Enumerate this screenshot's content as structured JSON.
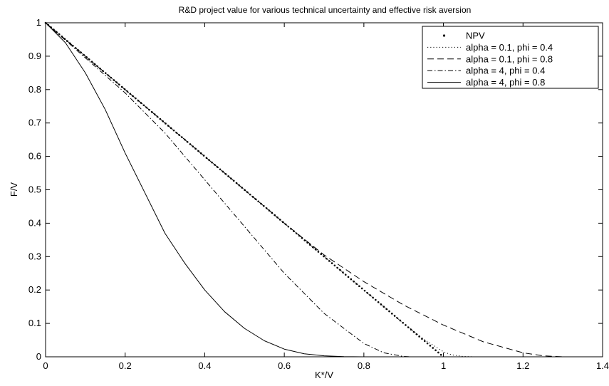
{
  "chart_data": {
    "type": "line",
    "title": "R&D project value for various technical uncertainty and effective risk aversion",
    "xlabel": "K*/V",
    "ylabel": "F/V",
    "xlim": [
      0,
      1.4
    ],
    "ylim": [
      0,
      1
    ],
    "xticks": [
      0,
      0.2,
      0.4,
      0.6,
      0.8,
      1,
      1.2,
      1.4
    ],
    "xtick_labels": [
      "0",
      "0.2",
      "0.4",
      "0.6",
      "0.8",
      "1",
      "1.2",
      "1.4"
    ],
    "yticks": [
      0,
      0.1,
      0.2,
      0.3,
      0.4,
      0.5,
      0.6,
      0.7,
      0.8,
      0.9,
      1
    ],
    "ytick_labels": [
      "0",
      "0.1",
      "0.2",
      "0.3",
      "0.4",
      "0.5",
      "0.6",
      "0.7",
      "0.8",
      "0.9",
      "1"
    ],
    "grid": false,
    "legend_position": "top-right",
    "series": [
      {
        "name": "NPV",
        "style": "heavy-dotted",
        "color": "#000000",
        "x": [
          0,
          0.1,
          0.2,
          0.3,
          0.4,
          0.5,
          0.6,
          0.7,
          0.8,
          0.9,
          1.0
        ],
        "y": [
          1,
          0.9,
          0.8,
          0.7,
          0.6,
          0.5,
          0.4,
          0.3,
          0.2,
          0.1,
          0
        ]
      },
      {
        "name": "alpha = 0.1, phi = 0.4",
        "style": "dotted",
        "color": "#000000",
        "x": [
          0,
          0.1,
          0.2,
          0.3,
          0.4,
          0.5,
          0.6,
          0.7,
          0.8,
          0.9,
          0.95,
          1.0,
          1.02,
          1.05,
          1.08
        ],
        "y": [
          1,
          0.9,
          0.8,
          0.7,
          0.6,
          0.5,
          0.4,
          0.3,
          0.2,
          0.1,
          0.053,
          0.015,
          0.006,
          0.001,
          0
        ]
      },
      {
        "name": "alpha = 0.1, phi = 0.8",
        "style": "dashed",
        "color": "#000000",
        "x": [
          0,
          0.1,
          0.2,
          0.3,
          0.4,
          0.5,
          0.6,
          0.7,
          0.8,
          0.9,
          1.0,
          1.1,
          1.2,
          1.25,
          1.3
        ],
        "y": [
          1,
          0.9,
          0.8,
          0.7,
          0.6,
          0.5,
          0.4,
          0.305,
          0.225,
          0.155,
          0.095,
          0.045,
          0.012,
          0.003,
          0
        ]
      },
      {
        "name": "alpha = 4, phi = 0.4",
        "style": "dashdot",
        "color": "#000000",
        "x": [
          0,
          0.1,
          0.2,
          0.3,
          0.4,
          0.5,
          0.6,
          0.7,
          0.8,
          0.85,
          0.9,
          0.92
        ],
        "y": [
          1,
          0.895,
          0.79,
          0.67,
          0.53,
          0.39,
          0.25,
          0.13,
          0.04,
          0.012,
          0.001,
          0
        ]
      },
      {
        "name": "alpha = 4, phi = 0.8",
        "style": "solid",
        "color": "#000000",
        "x": [
          0,
          0.05,
          0.1,
          0.15,
          0.2,
          0.25,
          0.3,
          0.35,
          0.4,
          0.45,
          0.5,
          0.55,
          0.6,
          0.65,
          0.7,
          0.75,
          0.8
        ],
        "y": [
          1,
          0.94,
          0.85,
          0.74,
          0.61,
          0.49,
          0.37,
          0.28,
          0.2,
          0.135,
          0.085,
          0.048,
          0.023,
          0.009,
          0.003,
          0.0005,
          0
        ]
      }
    ]
  }
}
